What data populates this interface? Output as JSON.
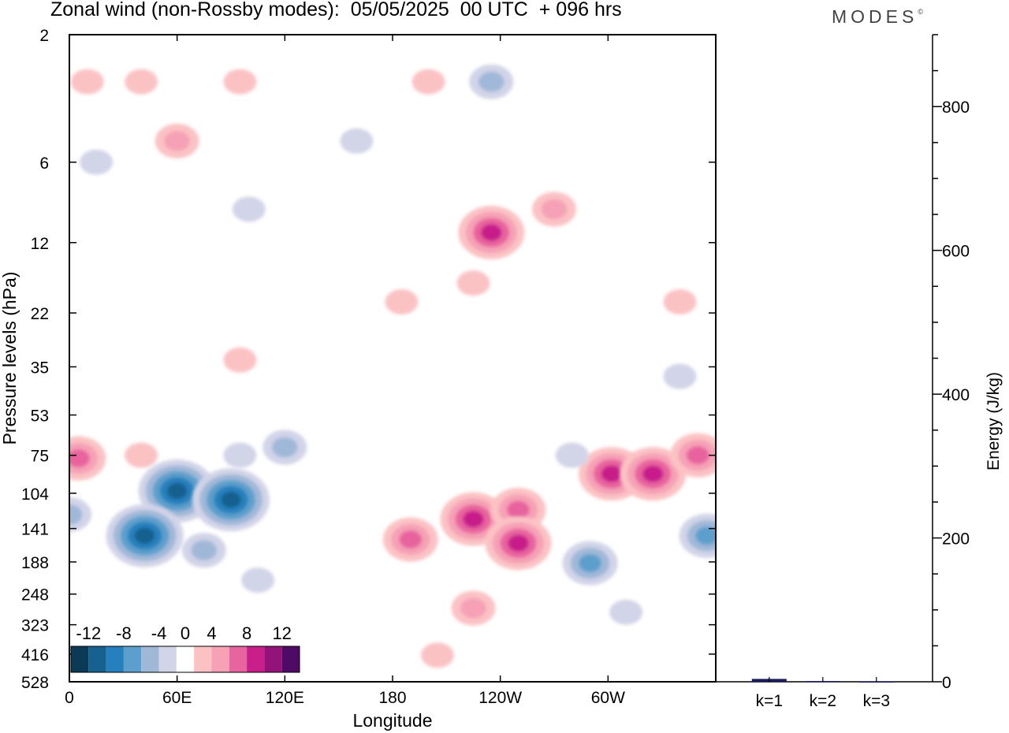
{
  "title": "Zonal wind (non-Rossby modes):  05/05/2025  00 UTC  + 096 hrs",
  "brand": "MODES",
  "brand_mark": "©",
  "chart_data": [
    {
      "type": "heatmap",
      "title": "Zonal wind (non-Rossby modes):  05/05/2025  00 UTC  + 096 hrs",
      "xlabel": "Longitude",
      "ylabel": "Pressure levels (hPa)",
      "x_ticks": [
        "0",
        "60E",
        "120E",
        "180",
        "120W",
        "60W"
      ],
      "x_tick_lon": [
        0,
        60,
        120,
        180,
        240,
        300
      ],
      "xlim": [
        0,
        360
      ],
      "y_ticks": [
        "2",
        "6",
        "12",
        "22",
        "35",
        "53",
        "75",
        "104",
        "141",
        "188",
        "248",
        "323",
        "416",
        "528"
      ],
      "y_scale": "log",
      "ylim": [
        528,
        2
      ],
      "colorbar": {
        "labels": [
          "-12",
          "-8",
          "-4",
          "0",
          "4",
          "8",
          "12"
        ],
        "label_bounds": [
          -12,
          -8,
          -4,
          0,
          4,
          8,
          12
        ],
        "bounds": [
          -14,
          -12,
          -10,
          -8,
          -6,
          -4,
          -2,
          2,
          4,
          6,
          8,
          10,
          12,
          14
        ],
        "colors": [
          "#0b3a57",
          "#16618f",
          "#2680bd",
          "#5d9fcc",
          "#a0b8d8",
          "#d2d4e8",
          "#ffffff",
          "#fbc2c4",
          "#f6a1b6",
          "#e8649e",
          "#c81f8b",
          "#93137a",
          "#4f0a66"
        ],
        "placement": "bottom-left"
      },
      "features": [
        {
          "lon": 15,
          "p": 6,
          "v": -3
        },
        {
          "lon": 10,
          "p": 3,
          "v": 3
        },
        {
          "lon": 40,
          "p": 3,
          "v": 3
        },
        {
          "lon": 95,
          "p": 3,
          "v": 3
        },
        {
          "lon": 60,
          "p": 5,
          "v": 4
        },
        {
          "lon": 100,
          "p": 9,
          "v": -3
        },
        {
          "lon": 160,
          "p": 5,
          "v": -3
        },
        {
          "lon": 200,
          "p": 3,
          "v": 3
        },
        {
          "lon": 235,
          "p": 3,
          "v": -4
        },
        {
          "lon": 270,
          "p": 9,
          "v": 4
        },
        {
          "lon": 235,
          "p": 11,
          "v": 8
        },
        {
          "lon": 225,
          "p": 17,
          "v": 3
        },
        {
          "lon": 185,
          "p": 20,
          "v": 3
        },
        {
          "lon": 340,
          "p": 20,
          "v": 3
        },
        {
          "lon": 340,
          "p": 38,
          "v": -3
        },
        {
          "lon": 95,
          "p": 33,
          "v": 3
        },
        {
          "lon": 5,
          "p": 77,
          "v": 7
        },
        {
          "lon": 40,
          "p": 75,
          "v": 3
        },
        {
          "lon": 95,
          "p": 75,
          "v": -3
        },
        {
          "lon": 120,
          "p": 70,
          "v": -4
        },
        {
          "lon": 60,
          "p": 102,
          "v": -11
        },
        {
          "lon": 42,
          "p": 150,
          "v": -10
        },
        {
          "lon": 90,
          "p": 110,
          "v": -10
        },
        {
          "lon": 75,
          "p": 170,
          "v": -5
        },
        {
          "lon": 0,
          "p": 125,
          "v": -5
        },
        {
          "lon": 105,
          "p": 220,
          "v": -3
        },
        {
          "lon": 190,
          "p": 155,
          "v": 7
        },
        {
          "lon": 225,
          "p": 130,
          "v": 8
        },
        {
          "lon": 250,
          "p": 120,
          "v": 6
        },
        {
          "lon": 250,
          "p": 160,
          "v": 8
        },
        {
          "lon": 225,
          "p": 280,
          "v": 5
        },
        {
          "lon": 205,
          "p": 420,
          "v": 3
        },
        {
          "lon": 302,
          "p": 88,
          "v": 9
        },
        {
          "lon": 325,
          "p": 88,
          "v": 8
        },
        {
          "lon": 350,
          "p": 75,
          "v": 6
        },
        {
          "lon": 290,
          "p": 190,
          "v": -6
        },
        {
          "lon": 355,
          "p": 150,
          "v": -7
        },
        {
          "lon": 310,
          "p": 290,
          "v": -3
        },
        {
          "lon": 280,
          "p": 75,
          "v": -3
        }
      ]
    },
    {
      "type": "bar",
      "ylabel": "Energy (J/kg)",
      "categories": [
        "k=1",
        "k=2",
        "k=3"
      ],
      "values": [
        4,
        1,
        0.5
      ],
      "ylim": [
        0,
        900
      ],
      "y_ticks": [
        0,
        200,
        400,
        600,
        800
      ],
      "bar_color": "#1c1c5c"
    }
  ]
}
